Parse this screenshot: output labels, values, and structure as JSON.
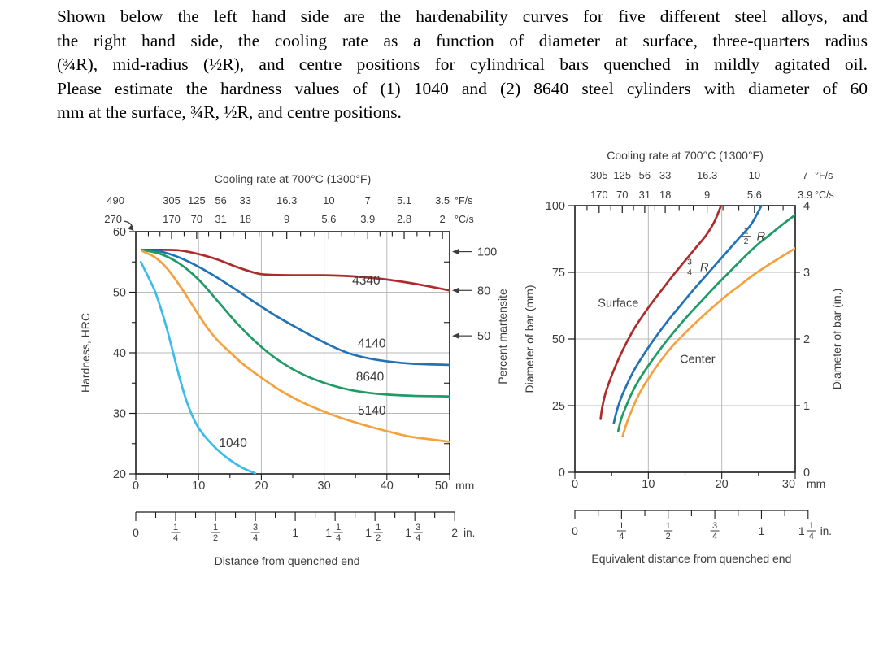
{
  "question": {
    "lines": [
      "Shown below the left hand side are the hardenability curves for five different steel alloys, and",
      "the right hand side, the cooling rate as a function of diameter at surface, three-quarters radius",
      "(¾R), mid-radius (½R), and centre positions for cylindrical bars quenched in mildly agitated oil.",
      "Please estimate the hardness values of (1) 1040 and (2) 8640 steel cylinders with diameter of 60",
      "mm at the surface, ¾R, ½R, and centre positions."
    ]
  },
  "palette": {
    "red": "#ae2b2c",
    "blue": "#2173b6",
    "green": "#1f9b66",
    "orange": "#f5a13d",
    "cyan": "#3cbcea",
    "grid": "#b9b9b9",
    "frame": "#1c1c1c",
    "text": "#3c3c3c"
  },
  "chart_data": [
    {
      "type": "line",
      "id": "hardenability",
      "title": "Cooling rate at 700°C (1300°F)",
      "xlabel": "Distance from quenched end",
      "ylabel": "Hardness, HRC",
      "y2label": "Percent martensite",
      "xlim": [
        0,
        50
      ],
      "ylim": [
        20,
        60
      ],
      "x_unit": "mm",
      "x_majors": [
        0,
        10,
        20,
        30,
        40,
        50
      ],
      "x_minor_step": 5,
      "y_majors": [
        20,
        30,
        40,
        50,
        60
      ],
      "y_minors": [
        25,
        35,
        45,
        55
      ],
      "grid_x": [
        10,
        20,
        30,
        40
      ],
      "grid_y": [
        30,
        40,
        50
      ],
      "top_axis": {
        "fps_unit": "°F/s",
        "cps_unit": "°C/s",
        "corner_fps": "490",
        "corner_cps": "270",
        "labels": [
          {
            "fps": "305",
            "cps": "170",
            "f": 0.114
          },
          {
            "fps": "125",
            "cps": "70",
            "f": 0.194
          },
          {
            "fps": "56",
            "cps": "31",
            "f": 0.271
          },
          {
            "fps": "33",
            "cps": "18",
            "f": 0.349
          },
          {
            "fps": "16.3",
            "cps": "9",
            "f": 0.481
          },
          {
            "fps": "10",
            "cps": "5.6",
            "f": 0.615
          },
          {
            "fps": "7",
            "cps": "3.9",
            "f": 0.739
          },
          {
            "fps": "5.1",
            "cps": "2.8",
            "f": 0.855
          },
          {
            "fps": "3.5",
            "cps": "2",
            "f": 0.977
          }
        ],
        "short_ticks": [
          0.04,
          0.077,
          0.154,
          0.232,
          0.31,
          0.393,
          0.437,
          0.525,
          0.57,
          0.656,
          0.698,
          0.778,
          0.817,
          0.896,
          0.937
        ]
      },
      "martensite_arrows": [
        {
          "label": "100",
          "hrc": 56.7
        },
        {
          "label": "80",
          "hrc": 50.3
        },
        {
          "label": "50",
          "hrc": 42.8
        }
      ],
      "inch_ruler": {
        "max_in": 2,
        "unit": "in.",
        "labels": [
          {
            "whole": "0"
          },
          {
            "num": "1",
            "den": "4"
          },
          {
            "num": "1",
            "den": "2"
          },
          {
            "num": "3",
            "den": "4"
          },
          {
            "whole": "1"
          },
          {
            "whole": "1",
            "num": "1",
            "den": "4"
          },
          {
            "whole": "1",
            "num": "1",
            "den": "2"
          },
          {
            "whole": "1",
            "num": "3",
            "den": "4"
          },
          {
            "whole": "2",
            "unit": "in."
          }
        ]
      },
      "series": [
        {
          "name": "4340",
          "color_key": "red",
          "label_at": [
            36.7,
            51.3
          ],
          "points": [
            [
              1,
              57
            ],
            [
              4,
              57
            ],
            [
              7,
              56.9
            ],
            [
              10,
              56.3
            ],
            [
              13,
              55.4
            ],
            [
              16,
              54.2
            ],
            [
              19,
              53.2
            ],
            [
              21,
              52.9
            ],
            [
              25,
              52.8
            ],
            [
              30,
              52.8
            ],
            [
              35,
              52.6
            ],
            [
              40,
              52.1
            ],
            [
              45,
              51.3
            ],
            [
              50,
              50.3
            ]
          ]
        },
        {
          "name": "4140",
          "color_key": "blue",
          "label_at": [
            37.6,
            40.9
          ],
          "points": [
            [
              1,
              57
            ],
            [
              4,
              56.7
            ],
            [
              7,
              55.7
            ],
            [
              10,
              54.2
            ],
            [
              13,
              52.4
            ],
            [
              16,
              50.4
            ],
            [
              19,
              48.3
            ],
            [
              22,
              46.3
            ],
            [
              25,
              44.5
            ],
            [
              28,
              42.8
            ],
            [
              31,
              41.2
            ],
            [
              34,
              39.9
            ],
            [
              37,
              39.1
            ],
            [
              40,
              38.6
            ],
            [
              44,
              38.2
            ],
            [
              50,
              38
            ]
          ]
        },
        {
          "name": "8640",
          "color_key": "green",
          "label_at": [
            37.3,
            35.4
          ],
          "points": [
            [
              1,
              57
            ],
            [
              4,
              56.3
            ],
            [
              7,
              54.7
            ],
            [
              10,
              52.1
            ],
            [
              13,
              48.6
            ],
            [
              16,
              45
            ],
            [
              19,
              41.9
            ],
            [
              22,
              39.3
            ],
            [
              25,
              37.3
            ],
            [
              28,
              35.8
            ],
            [
              31,
              34.7
            ],
            [
              34,
              33.9
            ],
            [
              37,
              33.4
            ],
            [
              40,
              33.1
            ],
            [
              44,
              32.9
            ],
            [
              50,
              32.8
            ]
          ]
        },
        {
          "name": "5140",
          "color_key": "orange",
          "label_at": [
            37.6,
            29.8
          ],
          "points": [
            [
              1,
              56.8
            ],
            [
              3,
              55.8
            ],
            [
              5,
              53.9
            ],
            [
              7,
              51.1
            ],
            [
              9,
              47.9
            ],
            [
              11,
              44.7
            ],
            [
              13,
              42.1
            ],
            [
              15,
              40.1
            ],
            [
              17,
              38.2
            ],
            [
              20,
              35.9
            ],
            [
              23,
              33.8
            ],
            [
              26,
              32.1
            ],
            [
              29,
              30.7
            ],
            [
              32,
              29.5
            ],
            [
              35,
              28.5
            ],
            [
              38,
              27.6
            ],
            [
              41,
              26.8
            ],
            [
              44,
              26.1
            ],
            [
              47,
              25.7
            ],
            [
              50,
              25.3
            ]
          ]
        },
        {
          "name": "1040",
          "color_key": "cyan",
          "label_at": [
            15.5,
            24.4
          ],
          "points": [
            [
              0.8,
              55
            ],
            [
              2,
              52.5
            ],
            [
              3,
              50.3
            ],
            [
              4,
              47.3
            ],
            [
              5,
              43.8
            ],
            [
              6,
              39.8
            ],
            [
              7,
              35.8
            ],
            [
              8,
              32.3
            ],
            [
              9,
              29.6
            ],
            [
              10,
              27.6
            ],
            [
              11.5,
              25.6
            ],
            [
              13,
              24
            ],
            [
              15,
              22.3
            ],
            [
              17,
              21
            ],
            [
              19,
              20.1
            ]
          ]
        }
      ]
    },
    {
      "type": "line",
      "id": "cooling-rate-diameter",
      "title": "Cooling rate at 700°C (1300°F)",
      "xlabel": "Equivalent distance from quenched end",
      "ylabel": "Diameter of bar (mm)",
      "y2label": "Diameter of bar (in.)",
      "xlim": [
        0,
        30
      ],
      "ylim": [
        0,
        100
      ],
      "x_unit": "mm",
      "x_majors": [
        0,
        10,
        20,
        30
      ],
      "x_minor_step": 5,
      "y_majors": [
        0,
        25,
        50,
        75,
        100
      ],
      "grid_x": [
        10,
        20
      ],
      "grid_y": [
        25,
        50,
        75
      ],
      "right_axis_labels": [
        {
          "label": "4",
          "mm": 100
        },
        {
          "label": "3",
          "mm": 75
        },
        {
          "label": "2",
          "mm": 50
        },
        {
          "label": "1",
          "mm": 25
        },
        {
          "label": "0",
          "mm": 0
        }
      ],
      "top_axis": {
        "fps_unit": "°F/s",
        "cps_unit": "°C/s",
        "labels": [
          {
            "fps": "305",
            "cps": "170",
            "f": 0.11
          },
          {
            "fps": "125",
            "cps": "70",
            "f": 0.215
          },
          {
            "fps": "56",
            "cps": "31",
            "f": 0.317
          },
          {
            "fps": "33",
            "cps": "18",
            "f": 0.41
          },
          {
            "fps": "16.3",
            "cps": "9",
            "f": 0.6
          },
          {
            "fps": "10",
            "cps": "5.6",
            "f": 0.815
          },
          {
            "fps": "7",
            "cps": "3.9",
            "f": 1.045
          }
        ],
        "short_ticks": [
          0.055,
          0.163,
          0.266,
          0.363,
          0.473,
          0.537,
          0.672,
          0.744,
          0.88,
          0.945
        ]
      },
      "inch_ruler": {
        "max_in": 1.25,
        "unit": "in.",
        "labels": [
          {
            "whole": "0"
          },
          {
            "num": "1",
            "den": "4"
          },
          {
            "num": "1",
            "den": "2"
          },
          {
            "num": "3",
            "den": "4"
          },
          {
            "whole": "1"
          },
          {
            "whole": "1",
            "num": "1",
            "den": "4",
            "unit": "in."
          }
        ]
      },
      "fraction_labels": [
        {
          "num": "3",
          "den": "4",
          "suffix": "R",
          "at": [
            16.5,
            77
          ]
        },
        {
          "num": "1",
          "den": "2",
          "suffix": "R",
          "at": [
            24.2,
            88.5
          ]
        }
      ],
      "series": [
        {
          "name": "Surface",
          "color_key": "red",
          "label_at": [
            5.9,
            62
          ],
          "points": [
            [
              3.5,
              20
            ],
            [
              3.7,
              24
            ],
            [
              4.1,
              29
            ],
            [
              4.7,
              34
            ],
            [
              5.4,
              39
            ],
            [
              6.2,
              44
            ],
            [
              7.1,
              49
            ],
            [
              8.1,
              54
            ],
            [
              9.3,
              59
            ],
            [
              10.6,
              64
            ],
            [
              12,
              69
            ],
            [
              13.4,
              74
            ],
            [
              14.9,
              79
            ],
            [
              16.4,
              84
            ],
            [
              17.9,
              89
            ],
            [
              19,
              94
            ],
            [
              19.9,
              100
            ]
          ]
        },
        {
          "name": "3/4R",
          "color_key": "blue",
          "label_at": null,
          "points": [
            [
              5.3,
              18.5
            ],
            [
              5.7,
              23
            ],
            [
              6.3,
              28
            ],
            [
              7.1,
              33
            ],
            [
              8,
              38
            ],
            [
              9.1,
              43
            ],
            [
              10.3,
              48
            ],
            [
              11.6,
              53
            ],
            [
              13,
              58
            ],
            [
              14.5,
              63
            ],
            [
              16,
              68
            ],
            [
              17.6,
              73
            ],
            [
              19.2,
              78
            ],
            [
              20.8,
              83
            ],
            [
              22.4,
              88
            ],
            [
              24,
              93
            ],
            [
              25.4,
              100
            ]
          ]
        },
        {
          "name": "1/2R",
          "color_key": "green",
          "label_at": null,
          "points": [
            [
              5.9,
              15.5
            ],
            [
              6.3,
              20
            ],
            [
              7,
              25
            ],
            [
              7.8,
              30
            ],
            [
              8.8,
              35
            ],
            [
              10,
              40
            ],
            [
              11.3,
              45
            ],
            [
              12.7,
              50
            ],
            [
              14.2,
              55
            ],
            [
              15.8,
              60
            ],
            [
              17.5,
              65
            ],
            [
              19.2,
              70
            ],
            [
              21,
              75
            ],
            [
              22.8,
              80
            ],
            [
              24.7,
              85
            ],
            [
              26.5,
              89
            ],
            [
              28.3,
              93
            ],
            [
              30,
              96.5
            ]
          ]
        },
        {
          "name": "Center",
          "color_key": "orange",
          "label_at": [
            16.7,
            41
          ],
          "points": [
            [
              6.5,
              13.5
            ],
            [
              7,
              18
            ],
            [
              7.7,
              23
            ],
            [
              8.5,
              28
            ],
            [
              9.5,
              33
            ],
            [
              10.7,
              38
            ],
            [
              12,
              43
            ],
            [
              13.5,
              48
            ],
            [
              15.1,
              52.5
            ],
            [
              16.8,
              57
            ],
            [
              18.6,
              61.5
            ],
            [
              20.5,
              66
            ],
            [
              22.4,
              70
            ],
            [
              24.3,
              74
            ],
            [
              26.2,
              77.5
            ],
            [
              28.1,
              80.8
            ],
            [
              30,
              84
            ]
          ]
        }
      ]
    }
  ]
}
